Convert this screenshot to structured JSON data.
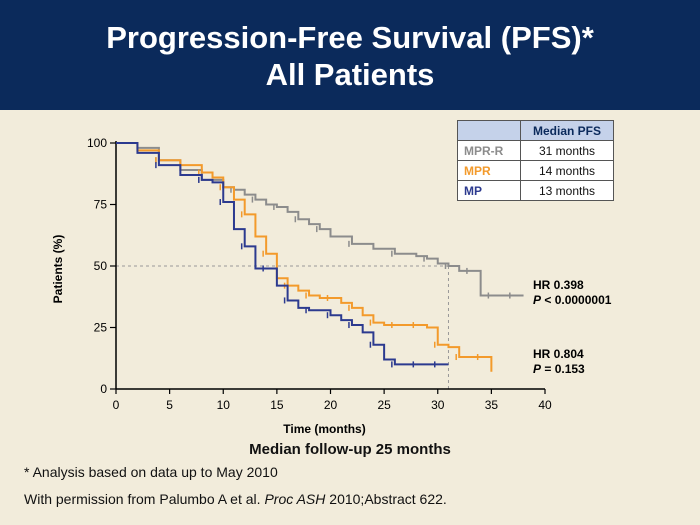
{
  "header": {
    "title_line1": "Progression-Free Survival (PFS)*",
    "title_line2": "All Patients"
  },
  "legend_table": {
    "header": "Median PFS",
    "rows": [
      {
        "label": "MPR-R",
        "value": "31 months",
        "color": "#8c8c8c"
      },
      {
        "label": "MPR",
        "value": "14 months",
        "color": "#f39a2b"
      },
      {
        "label": "MP",
        "value": "13 months",
        "color": "#2c3a8f"
      }
    ]
  },
  "caption": "Median follow-up 25 months",
  "footnote": "* Analysis based on data up to May 2010",
  "citation": {
    "prefix": "With permission from Palumbo A et al. ",
    "journal": "Proc ASH",
    "suffix": " 2010;Abstract 622."
  },
  "chart_data": {
    "type": "line",
    "xlabel": "Time (months)",
    "ylabel": "Patients (%)",
    "xlim": [
      0,
      40
    ],
    "ylim": [
      0,
      100
    ],
    "xticks": [
      0,
      5,
      10,
      15,
      20,
      25,
      30,
      35,
      40
    ],
    "yticks": [
      0,
      25,
      50,
      75,
      100
    ],
    "reference_lines": {
      "y": 50,
      "x": 31
    },
    "annotations": [
      {
        "line1": "HR 0.398",
        "line2_italic": "P",
        "line2_rest": " < 0.0000001"
      },
      {
        "line1": "HR 0.804",
        "line2_italic": "P",
        "line2_rest": " = 0.153"
      }
    ],
    "series": [
      {
        "name": "MPR-R",
        "color": "#8c8c8c",
        "x": [
          0,
          2,
          4,
          6,
          8,
          10,
          11,
          12,
          13,
          14,
          15,
          16,
          17,
          18,
          19,
          20,
          22,
          24,
          26,
          28,
          29,
          30,
          31,
          32,
          33,
          34,
          35,
          36,
          37,
          38
        ],
        "y": [
          100,
          98,
          93,
          89,
          85,
          82,
          81,
          79,
          77,
          75,
          74,
          72,
          69,
          67,
          65,
          62,
          59,
          57,
          55,
          54,
          53,
          51,
          50,
          48,
          48,
          38,
          38,
          38,
          38,
          38
        ]
      },
      {
        "name": "MPR",
        "color": "#f39a2b",
        "x": [
          0,
          2,
          4,
          6,
          8,
          9,
          10,
          11,
          12,
          13,
          14,
          15,
          16,
          17,
          18,
          19,
          20,
          21,
          22,
          23,
          24,
          25,
          26,
          27,
          28,
          29,
          30,
          31,
          32,
          33,
          34,
          35
        ],
        "y": [
          100,
          97,
          93,
          91,
          88,
          86,
          82,
          77,
          71,
          62,
          55,
          45,
          42,
          40,
          38,
          37,
          37,
          35,
          33,
          30,
          27,
          26,
          26,
          26,
          26,
          25,
          18,
          17,
          13,
          13,
          13,
          7
        ]
      },
      {
        "name": "MP",
        "color": "#2c3a8f",
        "x": [
          0,
          2,
          4,
          6,
          8,
          9,
          10,
          11,
          12,
          13,
          14,
          15,
          16,
          17,
          18,
          19,
          20,
          21,
          22,
          23,
          24,
          25,
          26,
          27,
          28,
          29,
          30,
          31
        ],
        "y": [
          100,
          96,
          91,
          87,
          85,
          84,
          76,
          65,
          58,
          49,
          49,
          42,
          36,
          33,
          32,
          32,
          30,
          28,
          26,
          23,
          18,
          12,
          10,
          10,
          10,
          10,
          10,
          10
        ]
      }
    ]
  }
}
